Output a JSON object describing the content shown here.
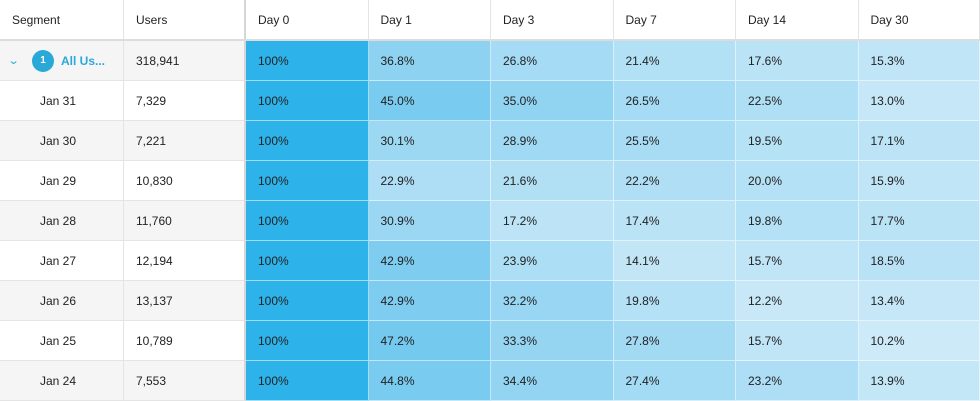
{
  "headers": [
    "Segment",
    "Users",
    "Day 0",
    "Day 1",
    "Day 3",
    "Day 7",
    "Day 14",
    "Day 30"
  ],
  "summary": {
    "badge": "1",
    "label": "All Us...",
    "users": "318,941",
    "values": [
      "100%",
      "36.8%",
      "26.8%",
      "21.4%",
      "17.6%",
      "15.3%"
    ]
  },
  "rows": [
    {
      "segment": "Jan 31",
      "users": "7,329",
      "values": [
        "100%",
        "45.0%",
        "35.0%",
        "26.5%",
        "22.5%",
        "13.0%"
      ]
    },
    {
      "segment": "Jan 30",
      "users": "7,221",
      "values": [
        "100%",
        "30.1%",
        "28.9%",
        "25.5%",
        "19.5%",
        "17.1%"
      ]
    },
    {
      "segment": "Jan 29",
      "users": "10,830",
      "values": [
        "100%",
        "22.9%",
        "21.6%",
        "22.2%",
        "20.0%",
        "15.9%"
      ]
    },
    {
      "segment": "Jan 28",
      "users": "11,760",
      "values": [
        "100%",
        "30.9%",
        "17.2%",
        "17.4%",
        "19.8%",
        "17.7%"
      ]
    },
    {
      "segment": "Jan 27",
      "users": "12,194",
      "values": [
        "100%",
        "42.9%",
        "23.9%",
        "14.1%",
        "15.7%",
        "18.5%"
      ]
    },
    {
      "segment": "Jan 26",
      "users": "13,137",
      "values": [
        "100%",
        "42.9%",
        "32.2%",
        "19.8%",
        "12.2%",
        "13.4%"
      ]
    },
    {
      "segment": "Jan 25",
      "users": "10,789",
      "values": [
        "100%",
        "47.2%",
        "33.3%",
        "27.8%",
        "15.7%",
        "10.2%"
      ]
    },
    {
      "segment": "Jan 24",
      "users": "7,553",
      "values": [
        "100%",
        "44.8%",
        "34.4%",
        "27.4%",
        "23.2%",
        "13.9%"
      ]
    }
  ],
  "colors": {
    "day0": "#2db3ea",
    "heat_high": "#74c9ef",
    "heat_low": "#cdeaf8",
    "accent": "#2aa8d8"
  }
}
